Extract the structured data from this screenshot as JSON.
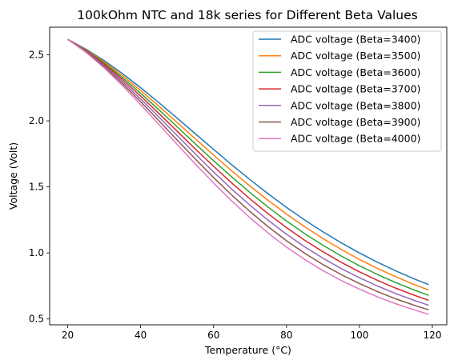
{
  "chart_data": {
    "type": "line",
    "title": "100kOhm NTC and 18k series for Different Beta Values",
    "xlabel": "Temperature (°C)",
    "ylabel": "Voltage (Volt)",
    "xlim": [
      15.05,
      123.95
    ],
    "ylim": [
      0.456,
      2.709
    ],
    "xticks": [
      20,
      40,
      60,
      80,
      100,
      120
    ],
    "yticks": [
      0.5,
      1.0,
      1.5,
      2.0,
      2.5
    ],
    "xtick_labels": [
      "20",
      "40",
      "60",
      "80",
      "100",
      "120"
    ],
    "ytick_labels": [
      "0.5",
      "1.0",
      "1.5",
      "2.0",
      "2.5"
    ],
    "grid": false,
    "legend_position": "top-right",
    "x": [
      20,
      25,
      30,
      35,
      40,
      45,
      50,
      55,
      60,
      65,
      70,
      75,
      80,
      85,
      90,
      95,
      100,
      105,
      110,
      115,
      119
    ],
    "series": [
      {
        "name": "ADC voltage (Beta=3400)",
        "color": "#1f77b4",
        "values": [
          2.617,
          2.543,
          2.456,
          2.358,
          2.251,
          2.138,
          2.021,
          1.902,
          1.784,
          1.667,
          1.555,
          1.447,
          1.345,
          1.249,
          1.16,
          1.077,
          1.0,
          0.929,
          0.864,
          0.804,
          0.76
        ]
      },
      {
        "name": "ADC voltage (Beta=3500)",
        "color": "#ff7f0e",
        "values": [
          2.617,
          2.539,
          2.447,
          2.343,
          2.23,
          2.111,
          1.988,
          1.864,
          1.741,
          1.621,
          1.506,
          1.397,
          1.294,
          1.198,
          1.109,
          1.027,
          0.951,
          0.882,
          0.819,
          0.761,
          0.719
        ]
      },
      {
        "name": "ADC voltage (Beta=3600)",
        "color": "#2ca02c",
        "values": [
          2.617,
          2.535,
          2.438,
          2.328,
          2.209,
          2.084,
          1.955,
          1.826,
          1.698,
          1.575,
          1.457,
          1.346,
          1.242,
          1.146,
          1.058,
          0.977,
          0.903,
          0.836,
          0.775,
          0.719,
          0.679
        ]
      },
      {
        "name": "ADC voltage (Beta=3700)",
        "color": "#d62728",
        "values": [
          2.617,
          2.531,
          2.429,
          2.313,
          2.188,
          2.056,
          1.922,
          1.787,
          1.656,
          1.529,
          1.409,
          1.296,
          1.192,
          1.096,
          1.009,
          0.929,
          0.857,
          0.792,
          0.733,
          0.68,
          0.641
        ]
      },
      {
        "name": "ADC voltage (Beta=3800)",
        "color": "#9467bd",
        "values": [
          2.617,
          2.527,
          2.419,
          2.298,
          2.166,
          2.029,
          1.889,
          1.749,
          1.613,
          1.483,
          1.361,
          1.247,
          1.142,
          1.046,
          0.96,
          0.882,
          0.812,
          0.749,
          0.692,
          0.641,
          0.604
        ]
      },
      {
        "name": "ADC voltage (Beta=3900)",
        "color": "#8c564b",
        "values": [
          2.617,
          2.523,
          2.41,
          2.283,
          2.145,
          2.001,
          1.855,
          1.711,
          1.571,
          1.438,
          1.313,
          1.198,
          1.092,
          0.997,
          0.912,
          0.836,
          0.768,
          0.707,
          0.652,
          0.604,
          0.569
        ]
      },
      {
        "name": "ADC voltage (Beta=4000)",
        "color": "#e377c2",
        "values": [
          2.617,
          2.519,
          2.401,
          2.268,
          2.123,
          1.973,
          1.822,
          1.673,
          1.53,
          1.393,
          1.266,
          1.15,
          1.044,
          0.95,
          0.866,
          0.792,
          0.726,
          0.667,
          0.615,
          0.569,
          0.535
        ]
      }
    ]
  }
}
